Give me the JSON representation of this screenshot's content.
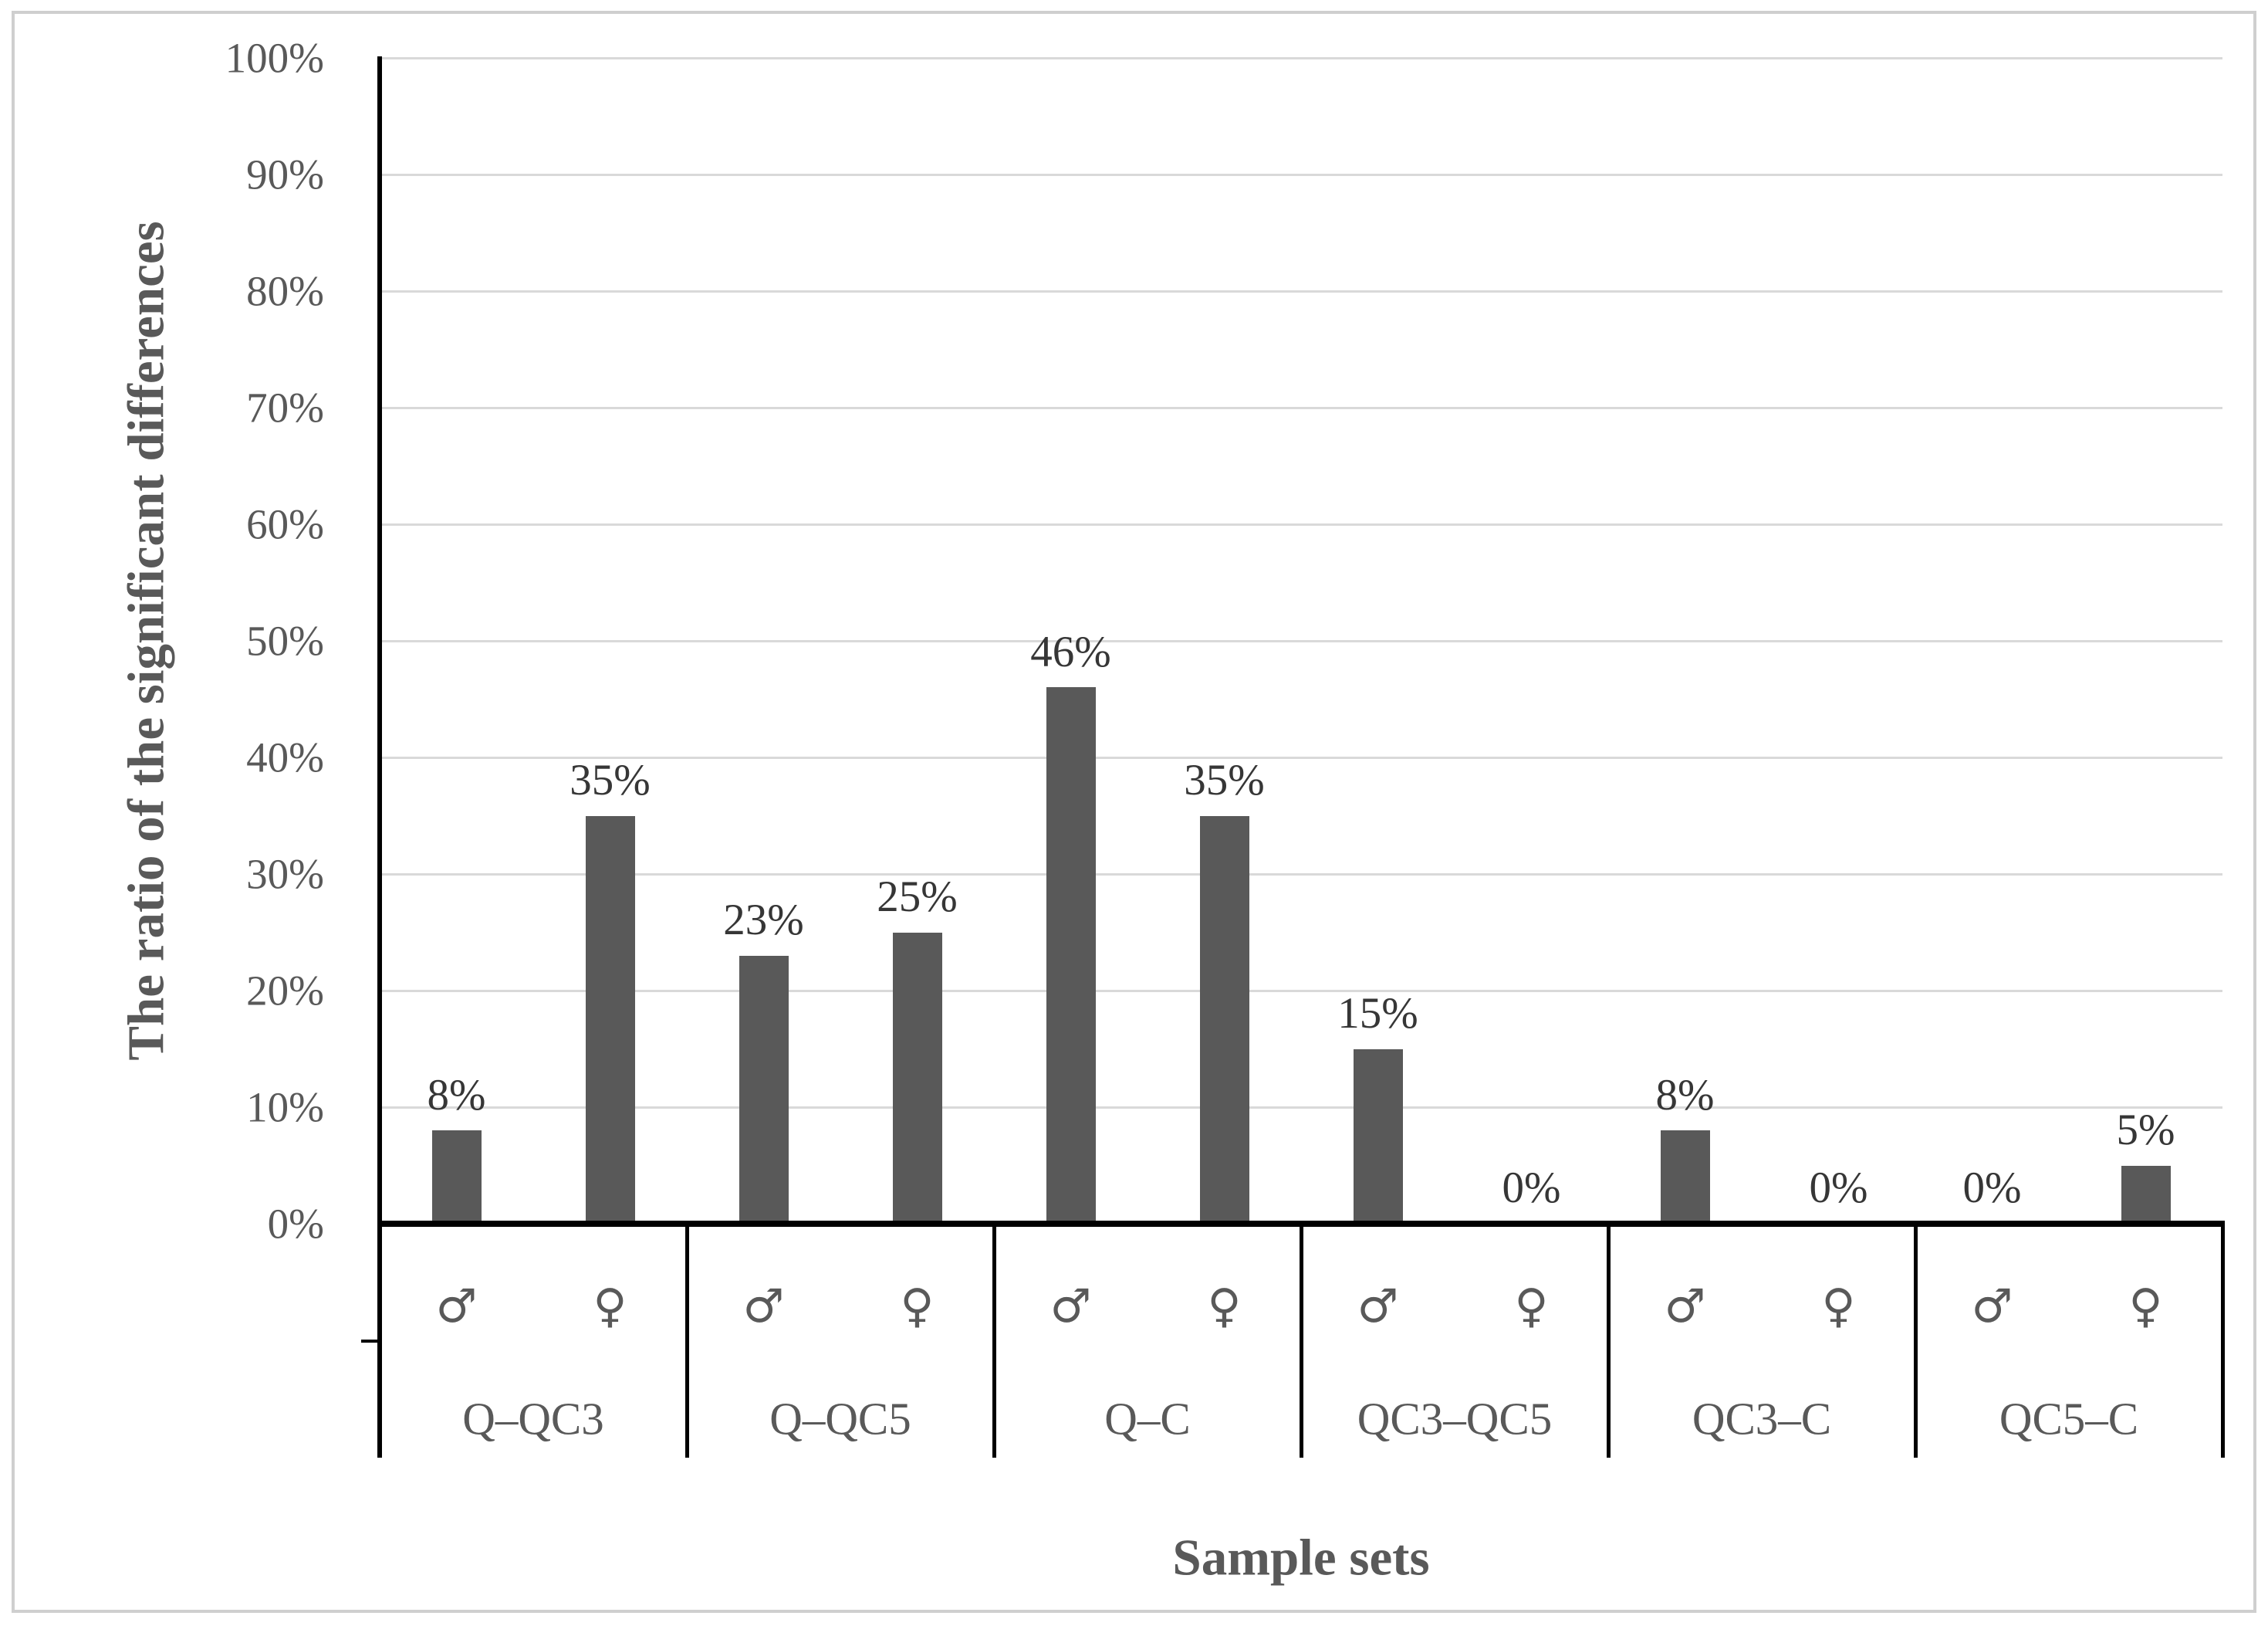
{
  "chart_data": {
    "type": "bar",
    "title": "",
    "ylabel": "The ratio of the significant differences",
    "xlabel": "Sample sets",
    "ylim": [
      0,
      100
    ],
    "grid": true,
    "legend_position": "none",
    "yticks": [
      "0%",
      "10%",
      "20%",
      "30%",
      "40%",
      "50%",
      "60%",
      "70%",
      "80%",
      "90%",
      "100%"
    ],
    "categories": [
      "Q–QC3",
      "Q–QC5",
      "Q–C",
      "QC3–QC5",
      "QC3–C",
      "QC5–C"
    ],
    "series": [
      {
        "name": "male",
        "symbol": "♂",
        "values": [
          8,
          23,
          46,
          15,
          8,
          0
        ],
        "labels": [
          "8%",
          "23%",
          "46%",
          "15%",
          "8%",
          "0%"
        ]
      },
      {
        "name": "female",
        "symbol": "♀",
        "values": [
          35,
          25,
          35,
          0,
          0,
          5
        ],
        "labels": [
          "35%",
          "25%",
          "35%",
          "0%",
          "0%",
          "5%"
        ]
      }
    ],
    "colors": {
      "bar": "#595959",
      "gridline": "#d9d9d9",
      "axis": "#000000",
      "tick_text": "#595959",
      "data_label_text": "#363636",
      "title_text": "#595959",
      "frame": "#cfcfcf",
      "background": "#ffffff"
    }
  }
}
